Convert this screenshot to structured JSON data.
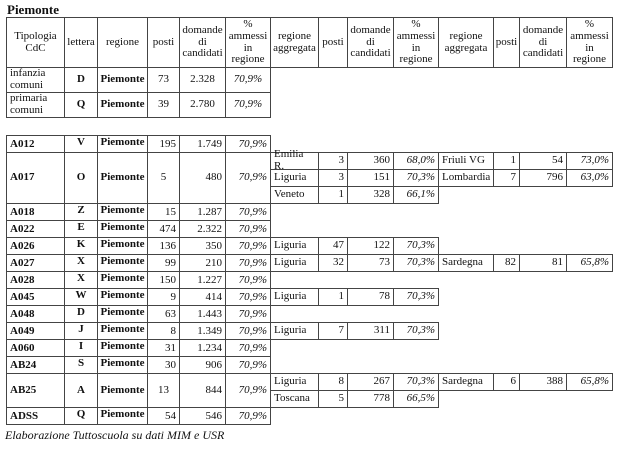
{
  "title": "Piemonte",
  "headers": {
    "tipologia": "Tipologia\nCdC",
    "lettera": "lettera",
    "regione": "regione",
    "posti": "posti",
    "domande": "domande di candidati",
    "pct": "% ammessi in regione",
    "regione_aggregata": "regione aggregata"
  },
  "top_rows": [
    {
      "code": "infanzia comuni",
      "lettera": "D",
      "regione": "Piemonte",
      "posti": "73",
      "domande": "2.328",
      "pct": "70,9%"
    },
    {
      "code": "primaria comuni",
      "lettera": "Q",
      "regione": "Piemonte",
      "posti": "39",
      "domande": "2.780",
      "pct": "70,9%"
    }
  ],
  "rows": [
    {
      "code": "A012",
      "lettera": "V",
      "regione": "Piemonte",
      "posti": "195",
      "domande": "1.749",
      "pct": "70,9%",
      "agg1": [],
      "agg2": []
    },
    {
      "code": "A017",
      "lettera": "O",
      "regione": "Piemonte",
      "posti": "5",
      "domande": "480",
      "pct": "70,9%",
      "agg1": [
        {
          "regione": "Emilia R.",
          "posti": "3",
          "domande": "360",
          "pct": "68,0%"
        },
        {
          "regione": "Liguria",
          "posti": "3",
          "domande": "151",
          "pct": "70,3%"
        },
        {
          "regione": "Veneto",
          "posti": "1",
          "domande": "328",
          "pct": "66,1%"
        }
      ],
      "agg2": [
        {
          "regione": "Friuli VG",
          "posti": "1",
          "domande": "54",
          "pct": "73,0%"
        },
        {
          "regione": "Lombardia",
          "posti": "7",
          "domande": "796",
          "pct": "63,0%"
        }
      ]
    },
    {
      "code": "A018",
      "lettera": "Z",
      "regione": "Piemonte",
      "posti": "15",
      "domande": "1.287",
      "pct": "70,9%",
      "agg1": [],
      "agg2": []
    },
    {
      "code": "A022",
      "lettera": "E",
      "regione": "Piemonte",
      "posti": "474",
      "domande": "2.322",
      "pct": "70,9%",
      "agg1": [],
      "agg2": []
    },
    {
      "code": "A026",
      "lettera": "K",
      "regione": "Piemonte",
      "posti": "136",
      "domande": "350",
      "pct": "70,9%",
      "agg1": [
        {
          "regione": "Liguria",
          "posti": "47",
          "domande": "122",
          "pct": "70,3%"
        }
      ],
      "agg2": []
    },
    {
      "code": "A027",
      "lettera": "X",
      "regione": "Piemonte",
      "posti": "99",
      "domande": "210",
      "pct": "70,9%",
      "agg1": [
        {
          "regione": "Liguria",
          "posti": "32",
          "domande": "73",
          "pct": "70,3%"
        }
      ],
      "agg2": [
        {
          "regione": "Sardegna",
          "posti": "82",
          "domande": "81",
          "pct": "65,8%"
        }
      ]
    },
    {
      "code": "A028",
      "lettera": "X",
      "regione": "Piemonte",
      "posti": "150",
      "domande": "1.227",
      "pct": "70,9%",
      "agg1": [],
      "agg2": []
    },
    {
      "code": "A045",
      "lettera": "W",
      "regione": "Piemonte",
      "posti": "9",
      "domande": "414",
      "pct": "70,9%",
      "agg1": [
        {
          "regione": "Liguria",
          "posti": "1",
          "domande": "78",
          "pct": "70,3%"
        }
      ],
      "agg2": []
    },
    {
      "code": "A048",
      "lettera": "D",
      "regione": "Piemonte",
      "posti": "63",
      "domande": "1.443",
      "pct": "70,9%",
      "agg1": [],
      "agg2": []
    },
    {
      "code": "A049",
      "lettera": "J",
      "regione": "Piemonte",
      "posti": "8",
      "domande": "1.349",
      "pct": "70,9%",
      "agg1": [
        {
          "regione": "Liguria",
          "posti": "7",
          "domande": "311",
          "pct": "70,3%"
        }
      ],
      "agg2": []
    },
    {
      "code": "A060",
      "lettera": "I",
      "regione": "Piemonte",
      "posti": "31",
      "domande": "1.234",
      "pct": "70,9%",
      "agg1": [],
      "agg2": []
    },
    {
      "code": "AB24",
      "lettera": "S",
      "regione": "Piemonte",
      "posti": "30",
      "domande": "906",
      "pct": "70,9%",
      "agg1": [],
      "agg2": []
    },
    {
      "code": "AB25",
      "lettera": "A",
      "regione": "Piemonte",
      "posti": "13",
      "domande": "844",
      "pct": "70,9%",
      "agg1": [
        {
          "regione": "Liguria",
          "posti": "8",
          "domande": "267",
          "pct": "70,3%"
        },
        {
          "regione": "Toscana",
          "posti": "5",
          "domande": "778",
          "pct": "66,5%"
        }
      ],
      "agg2": [
        {
          "regione": "Sardegna",
          "posti": "6",
          "domande": "388",
          "pct": "65,8%"
        }
      ]
    },
    {
      "code": "ADSS",
      "lettera": "Q",
      "regione": "Piemonte",
      "posti": "54",
      "domande": "546",
      "pct": "70,9%",
      "agg1": [],
      "agg2": []
    }
  ],
  "caption": "Elaborazione Tuttoscuola su dati MIM e USR"
}
